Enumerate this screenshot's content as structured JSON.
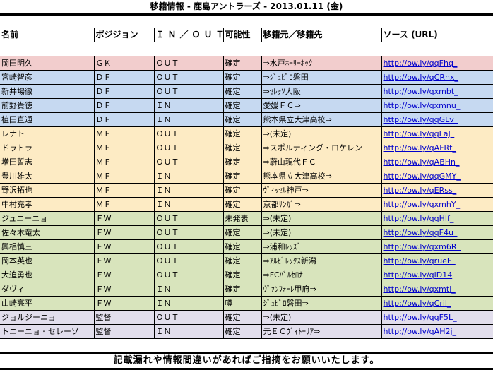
{
  "title": "移籍情報 - 鹿島アントラーズ - 2013.01.11 (金)",
  "headers": [
    "名前",
    "ポジジョン",
    "ＩＮ／ＯＵＴ",
    "可能性",
    "移籍元／移籍先",
    "ソース (URL)"
  ],
  "colors": {
    "GK": "#f2cdcd",
    "DF": "#c6d9f1",
    "MF": "#fdebc4",
    "FW": "#d8e4bc",
    "監督": "#e2deec"
  },
  "rows": [
    {
      "name": "岡田明久",
      "pos": "ＧＫ",
      "io": "ＯＵＴ",
      "prob": "確定",
      "club": "⇒水戸ﾎｰﾘｰﾎｯｸ",
      "url": "http://ow.ly/qqFhq_",
      "group": "GK"
    },
    {
      "name": "宮崎智彦",
      "pos": "ＤＦ",
      "io": "ＯＵＴ",
      "prob": "確定",
      "club": "⇒ｼﾞｭﾋﾞﾛ磐田",
      "url": "http://ow.ly/qCRhx_",
      "group": "DF"
    },
    {
      "name": "新井場徹",
      "pos": "ＤＦ",
      "io": "ＯＵＴ",
      "prob": "確定",
      "club": "⇒ｾﾚｯｿ大阪",
      "url": "http://ow.ly/qxmbt_",
      "group": "DF"
    },
    {
      "name": "前野貴徳",
      "pos": "ＤＦ",
      "io": "ＩＮ",
      "prob": "確定",
      "club": "愛媛ＦＣ⇒",
      "url": "http://ow.ly/qxmnu_",
      "group": "DF"
    },
    {
      "name": "植田直通",
      "pos": "ＤＦ",
      "io": "ＩＮ",
      "prob": "確定",
      "club": "熊本県立大津高校⇒",
      "url": "http://ow.ly/qqGLv_",
      "group": "DF"
    },
    {
      "name": "レナト",
      "pos": "ＭＦ",
      "io": "ＯＵＴ",
      "prob": "確定",
      "club": "⇒(未定)",
      "url": "http://ow.ly/qqLaJ_",
      "group": "MF"
    },
    {
      "name": "ドゥトラ",
      "pos": "ＭＦ",
      "io": "ＯＵＴ",
      "prob": "確定",
      "club": "⇒スポルティング・ロケレン",
      "url": "http://ow.ly/qAFRt_",
      "group": "MF"
    },
    {
      "name": "増田誓志",
      "pos": "ＭＦ",
      "io": "ＯＵＴ",
      "prob": "確定",
      "club": "⇒蔚山現代ＦＣ",
      "url": "http://ow.ly/qABHn_",
      "group": "MF"
    },
    {
      "name": "豊川雄太",
      "pos": "ＭＦ",
      "io": "ＩＮ",
      "prob": "確定",
      "club": "熊本県立大津高校⇒",
      "url": "http://ow.ly/qqGMY_",
      "group": "MF"
    },
    {
      "name": "野沢拓也",
      "pos": "ＭＦ",
      "io": "ＩＮ",
      "prob": "確定",
      "club": "ｳﾞｨｯｾﾙ神戸⇒",
      "url": "http://ow.ly/qERss_",
      "group": "MF"
    },
    {
      "name": "中村充孝",
      "pos": "ＭＦ",
      "io": "ＩＮ",
      "prob": "確定",
      "club": "京都ｻﾝｶﾞ⇒",
      "url": "http://ow.ly/qxmhY_",
      "group": "MF"
    },
    {
      "name": "ジュニーニョ",
      "pos": "ＦＷ",
      "io": "ＯＵＴ",
      "prob": "未発表",
      "club": "⇒(未定)",
      "url": "http://ow.ly/qqHlf_",
      "group": "FW"
    },
    {
      "name": "佐々木竜太",
      "pos": "ＦＷ",
      "io": "ＯＵＴ",
      "prob": "確定",
      "club": "⇒(未定)",
      "url": "http://ow.ly/qqF4u_",
      "group": "FW"
    },
    {
      "name": "興梠慎三",
      "pos": "ＦＷ",
      "io": "ＯＵＴ",
      "prob": "確定",
      "club": "⇒浦和ﾚｯｽﾞ",
      "url": "http://ow.ly/qxm6R_",
      "group": "FW"
    },
    {
      "name": "岡本英也",
      "pos": "ＦＷ",
      "io": "ＯＵＴ",
      "prob": "確定",
      "club": "⇒ｱﾙﾋﾞﾚｯｸｽ新潟",
      "url": "http://ow.ly/qrueF_",
      "group": "FW"
    },
    {
      "name": "大迫勇也",
      "pos": "ＦＷ",
      "io": "ＯＵＴ",
      "prob": "確定",
      "club": "⇒FCﾊﾞﾙｾﾛﾅ",
      "url": "http://ow.ly/qlD14",
      "group": "FW"
    },
    {
      "name": "ダヴィ",
      "pos": "ＦＷ",
      "io": "ＩＮ",
      "prob": "確定",
      "club": "ｳﾞｧﾝﾌｫｰﾚ甲府⇒",
      "url": "http://ow.ly/qxmti_",
      "group": "FW"
    },
    {
      "name": "山崎亮平",
      "pos": "ＦＷ",
      "io": "ＩＮ",
      "prob": "噂",
      "club": "ｼﾞｭﾋﾞﾛ磐田⇒",
      "url": "http://ow.ly/qCril_",
      "group": "FW"
    },
    {
      "name": "ジョルジーニョ",
      "pos": "監督",
      "io": "ＯＵＴ",
      "prob": "確定",
      "club": "⇒(未定)",
      "url": "http://ow.ly/qqF5L_",
      "group": "監督"
    },
    {
      "name": "トニーニョ・セレーゾ",
      "pos": "監督",
      "io": "ＩＮ",
      "prob": "確定",
      "club": "元ＥＣｳﾞｨﾄｰﾘｱ⇒",
      "url": "http://ow.ly/qAH2j_",
      "group": "監督"
    }
  ],
  "footer": "記載漏れや情報間違いがあればご指摘をお願いいたします。"
}
